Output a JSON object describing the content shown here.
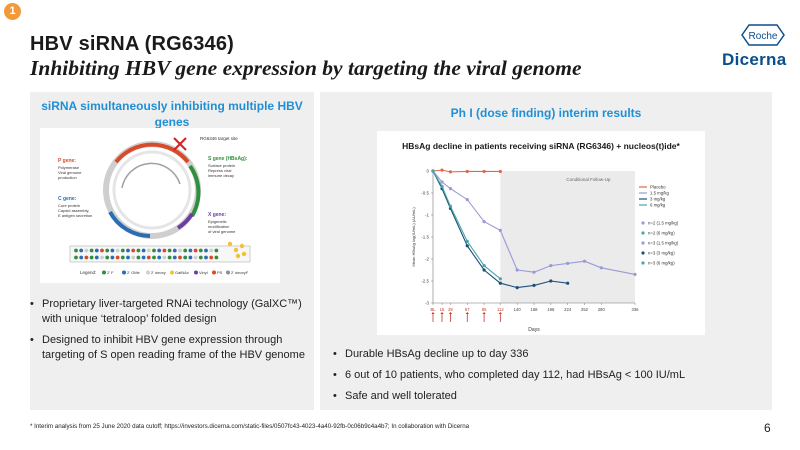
{
  "badge": "1",
  "title": "HBV siRNA (RG6346)",
  "subtitle": "Inhibiting HBV gene expression by targeting the viral genome",
  "logos": {
    "roche": "Roche",
    "dicerna": "Dicerna"
  },
  "left_panel": {
    "heading": "siRNA simultaneously inhibiting multiple HBV genes",
    "diagram": {
      "target_label": "RG6346 target site",
      "genes": [
        {
          "name": "P gene:",
          "desc": [
            "Polymerase",
            "Viral genome",
            "production"
          ],
          "color": "#d84a2a"
        },
        {
          "name": "S gene (HBsAg):",
          "desc": [
            "Surface protein",
            "Repress viral",
            "immune decay"
          ],
          "color": "#2f8f3c"
        },
        {
          "name": "C gene:",
          "desc": [
            "Core protein",
            "Capsid assembly,",
            "E antigen secretion"
          ],
          "color": "#2a6db5"
        },
        {
          "name": "X gene:",
          "desc": [
            "Epigenetic",
            "modification",
            "of viral genome"
          ],
          "color": "#6b3fa0"
        }
      ],
      "legend_label": "Legend:",
      "legend_items": [
        "2' F",
        "2' OMe",
        "2' deoxy",
        "GalNAc",
        "Vinyl",
        "PS",
        "2' deoxyF"
      ]
    },
    "bullets": [
      "Proprietary liver-targeted RNAi technology (GalXC™) with unique ‘tetraloop’ folded design",
      "Designed to inhibit HBV gene expression through targeting of S open reading frame of the HBV genome"
    ]
  },
  "right_panel": {
    "heading": "Ph I (dose finding) interim results",
    "bullets": [
      "Durable HBsAg decline up to day 336",
      "6 out of 10 patients, who completed day 112, had HBsAg < 100 IU/mL",
      "Safe and well tolerated"
    ]
  },
  "chart_data": {
    "type": "line",
    "title": "HBsAg decline in patients receiving siRNA (RG6346) + nucleos(t)ide*",
    "xlabel": "Days",
    "ylabel": "Mean HBsAg log(IU/mL) (ΔU/mL)",
    "shaded_region_label": "Conditional Follow-Up",
    "xlim": [
      0,
      336
    ],
    "ylim": [
      -3,
      0
    ],
    "x_ticks": [
      0,
      15,
      29,
      57,
      85,
      112,
      140,
      168,
      196,
      224,
      252,
      280,
      336
    ],
    "x_tick_labels": [
      "BL",
      "15",
      "29",
      "57",
      "85",
      "112",
      "140",
      "168",
      "196",
      "224",
      "252",
      "280",
      "336"
    ],
    "y_ticks": [
      0,
      -0.5,
      -1,
      -1.5,
      -2,
      -2.5,
      -3
    ],
    "y_tick_labels": [
      "0",
      "-0.5",
      "-1",
      "-1.5",
      "-2",
      "-2.5",
      "-3"
    ],
    "shaded_from_x": 112,
    "series": [
      {
        "name": "Placebo",
        "color": "#e0694a",
        "x": [
          0,
          15,
          29,
          57,
          85,
          112
        ],
        "y": [
          0,
          0.02,
          -0.02,
          -0.01,
          -0.01,
          -0.01
        ]
      },
      {
        "name": "1.5 mg/kg",
        "color": "#9a9ad6",
        "x": [
          0,
          15,
          29,
          57,
          85,
          112,
          140,
          168,
          196,
          224,
          252,
          280,
          336
        ],
        "y": [
          0,
          -0.25,
          -0.4,
          -0.65,
          -1.15,
          -1.35,
          -2.25,
          -2.3,
          -2.15,
          -2.1,
          -2.05,
          -2.2,
          -2.35
        ]
      },
      {
        "name": "3 mg/kg",
        "color": "#1c4f7a",
        "x": [
          0,
          15,
          29,
          57,
          85,
          112,
          140,
          168,
          196,
          224
        ],
        "y": [
          0,
          -0.4,
          -0.85,
          -1.7,
          -2.25,
          -2.55,
          -2.65,
          -2.6,
          -2.5,
          -2.55
        ]
      },
      {
        "name": "6 mg/kg",
        "color": "#4aa6a6",
        "x": [
          0,
          15,
          29,
          57,
          85,
          112
        ],
        "y": [
          0,
          -0.35,
          -0.8,
          -1.6,
          -2.15,
          -2.45
        ]
      }
    ],
    "legend": [
      {
        "label": "Placebo",
        "color": "#e0694a"
      },
      {
        "label": "1.5 mg/kg",
        "color": "#9a9ad6"
      },
      {
        "label": "3 mg/kg",
        "color": "#1c4f7a"
      },
      {
        "label": "6 mg/kg",
        "color": "#4aa6a6"
      }
    ],
    "legend_groups": [
      {
        "label": "n=2 (1.5 mg/kg)",
        "color": "#9a9ad6"
      },
      {
        "label": "n=2 (6 mg/kg)",
        "color": "#4aa6a6"
      },
      {
        "label": "n=3 (1.5 mg/kg)",
        "color": "#9a9ad6"
      },
      {
        "label": "n=3 (3 mg/kg)",
        "color": "#1c4f7a"
      },
      {
        "label": "n=3 (6 mg/kg)",
        "color": "#4aa6a6"
      }
    ],
    "legend_placement": "right"
  },
  "footnote": "* Interim analysis from 25 June 2020 data cutoff; https://investors.dicerna.com/static-files/0507fc43-4023-4a40-92fb-0c06b9c4a4b7; In collaboration with Dicerna",
  "page_number": "6",
  "colors": {
    "accent": "#1f8fd6",
    "badge": "#f29a3a",
    "panel": "#efefef",
    "dicerna": "#0b4f8a"
  }
}
